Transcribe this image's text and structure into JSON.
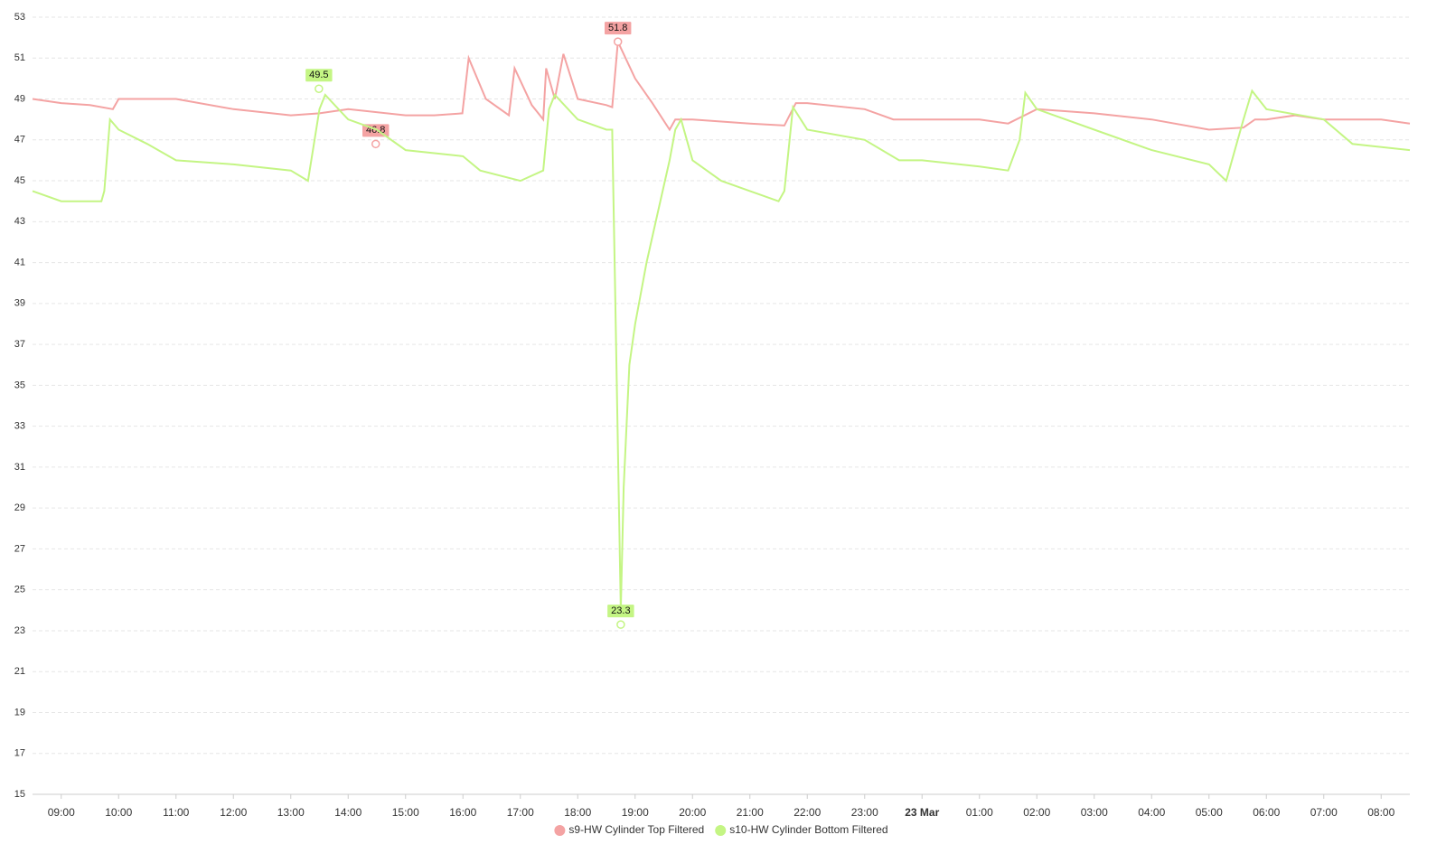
{
  "chart_data": {
    "type": "line",
    "xlim": [
      8.5,
      32.5
    ],
    "xticks": [
      {
        "value": 9,
        "label": "09:00"
      },
      {
        "value": 10,
        "label": "10:00"
      },
      {
        "value": 11,
        "label": "11:00"
      },
      {
        "value": 12,
        "label": "12:00"
      },
      {
        "value": 13,
        "label": "13:00"
      },
      {
        "value": 14,
        "label": "14:00"
      },
      {
        "value": 15,
        "label": "15:00"
      },
      {
        "value": 16,
        "label": "16:00"
      },
      {
        "value": 17,
        "label": "17:00"
      },
      {
        "value": 18,
        "label": "18:00"
      },
      {
        "value": 19,
        "label": "19:00"
      },
      {
        "value": 20,
        "label": "20:00"
      },
      {
        "value": 21,
        "label": "21:00"
      },
      {
        "value": 22,
        "label": "22:00"
      },
      {
        "value": 23,
        "label": "23:00"
      },
      {
        "value": 24,
        "label": "23 Mar"
      },
      {
        "value": 25,
        "label": "01:00"
      },
      {
        "value": 26,
        "label": "02:00"
      },
      {
        "value": 27,
        "label": "03:00"
      },
      {
        "value": 28,
        "label": "04:00"
      },
      {
        "value": 29,
        "label": "05:00"
      },
      {
        "value": 30,
        "label": "06:00"
      },
      {
        "value": 31,
        "label": "07:00"
      },
      {
        "value": 32,
        "label": "08:00"
      }
    ],
    "ylim": [
      15,
      53
    ],
    "yticks": [
      15,
      17,
      19,
      21,
      23,
      25,
      27,
      29,
      31,
      33,
      35,
      37,
      39,
      41,
      43,
      45,
      47,
      49,
      51,
      53
    ],
    "grid": true,
    "legend": "bottom",
    "series": [
      {
        "name": "s9-HW Cylinder Top Filtered",
        "color": "#f4a3a3",
        "x": [
          8.5,
          9,
          9.5,
          9.9,
          10,
          11,
          12,
          13,
          13.5,
          14,
          15,
          15.5,
          15.99,
          16.1,
          16.4,
          16.8,
          16.9,
          17.2,
          17.4,
          17.45,
          17.6,
          17.75,
          18,
          18.5,
          18.6,
          18.7,
          19,
          19.3,
          19.6,
          19.7,
          20,
          21,
          21.6,
          21.8,
          22,
          23,
          23.5,
          24,
          25,
          25.5,
          26,
          27,
          28,
          29,
          29.6,
          29.8,
          30,
          30.5,
          31,
          32,
          32.5
        ],
        "values": [
          49,
          48.8,
          48.7,
          48.5,
          49,
          49,
          48.5,
          48.2,
          48.3,
          48.5,
          48.2,
          48.2,
          48.3,
          51,
          49,
          48.2,
          50.5,
          48.7,
          48,
          50.5,
          49,
          51.2,
          49,
          48.7,
          48.6,
          51.8,
          50,
          48.8,
          47.5,
          48,
          48,
          47.8,
          47.7,
          48.8,
          48.8,
          48.5,
          48,
          48,
          48,
          47.8,
          48.5,
          48.3,
          48,
          47.5,
          47.6,
          48,
          48,
          48.2,
          48,
          48,
          47.8
        ],
        "markers": [
          {
            "x": 18.7,
            "value": 51.8
          },
          {
            "x": 14.48,
            "value": 46.8
          }
        ]
      },
      {
        "name": "s10-HW Cylinder Bottom Filtered",
        "color": "#c4f584",
        "x": [
          8.5,
          9,
          9.7,
          9.75,
          9.85,
          10,
          10.5,
          11,
          12,
          13,
          13.3,
          13.5,
          13.6,
          14,
          14.5,
          15,
          16,
          16.3,
          17,
          17.4,
          17.5,
          17.6,
          18,
          18.5,
          18.6,
          18.65,
          18.75,
          18.8,
          18.9,
          19,
          19.2,
          19.4,
          19.6,
          19.7,
          19.8,
          20,
          20.5,
          21,
          21.5,
          21.6,
          21.75,
          22,
          23,
          23.6,
          24,
          25,
          25.5,
          25.7,
          25.8,
          26,
          27,
          28,
          29,
          29.3,
          29.6,
          29.75,
          30,
          31,
          31.5,
          32.5
        ],
        "values": [
          44.5,
          44,
          44,
          44.5,
          48,
          47.5,
          46.8,
          46,
          45.8,
          45.5,
          45,
          48.5,
          49.2,
          48,
          47.5,
          46.5,
          46.2,
          45.5,
          45,
          45.5,
          48.5,
          49.2,
          48,
          47.5,
          47.5,
          40,
          24,
          30,
          36,
          38,
          41,
          43.5,
          46,
          47.5,
          48,
          46,
          45,
          44.5,
          44,
          44.5,
          48.6,
          47.5,
          47,
          46,
          46,
          45.7,
          45.5,
          47,
          49.3,
          48.5,
          47.5,
          46.5,
          45.8,
          45,
          48,
          49.4,
          48.5,
          48,
          46.8,
          46.5
        ],
        "markers": [
          {
            "x": 13.49,
            "value": 49.5
          },
          {
            "x": 18.75,
            "value": 23.3
          }
        ]
      }
    ]
  }
}
